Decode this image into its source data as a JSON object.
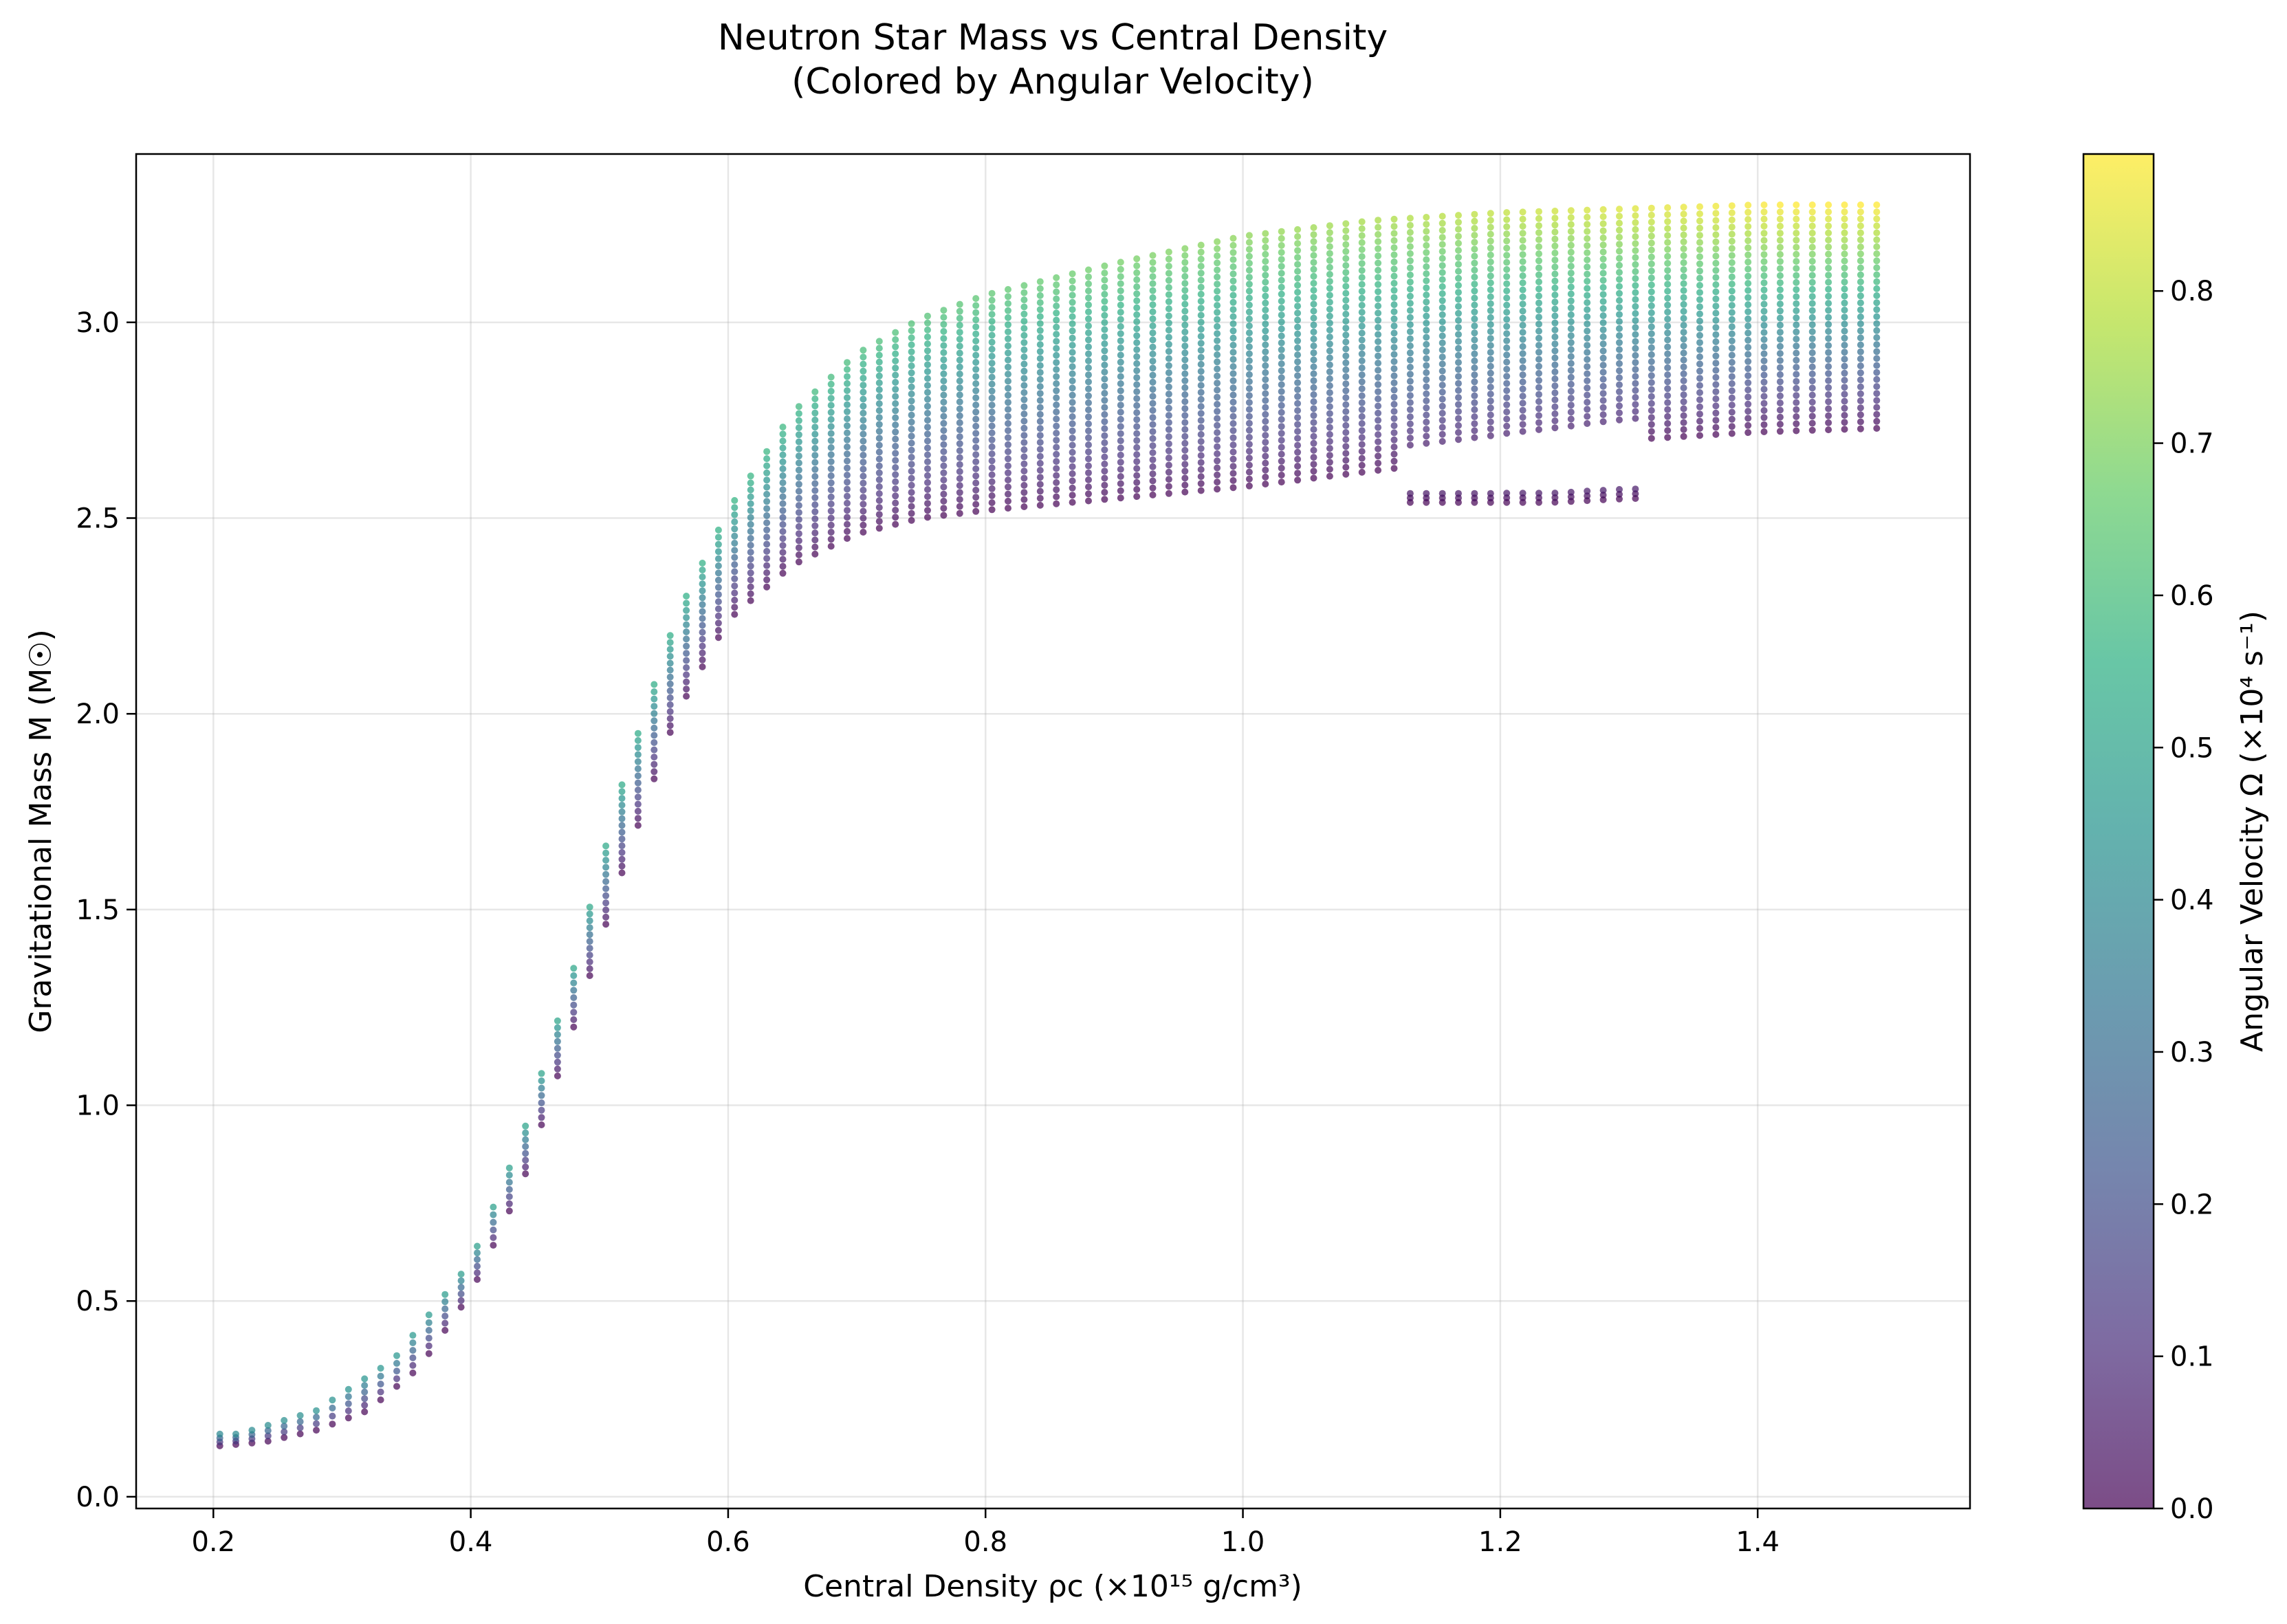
{
  "chart_data": {
    "type": "scatter",
    "title": "Neutron Star Mass vs Central Density",
    "subtitle": "(Colored by Angular Velocity)",
    "xlabel": "Central Density ρc (×10¹⁵ g/cm³)",
    "ylabel": "Gravitational Mass M (M☉)",
    "colorbar_label": "Angular Velocity Ω (×10⁴ s⁻¹)",
    "colormap": "viridis",
    "point_alpha": 0.7,
    "xlim": [
      0.14,
      1.565
    ],
    "ylim": [
      -0.03,
      3.43
    ],
    "clim": [
      0.0,
      0.89
    ],
    "x_ticks": [
      0.2,
      0.4,
      0.6,
      0.8,
      1.0,
      1.2,
      1.4
    ],
    "x_tick_labels": [
      "0.2",
      "0.4",
      "0.6",
      "0.8",
      "1.0",
      "1.2",
      "1.4"
    ],
    "y_ticks": [
      0.0,
      0.5,
      1.0,
      1.5,
      2.0,
      2.5,
      3.0
    ],
    "y_tick_labels": [
      "0.0",
      "0.5",
      "1.0",
      "1.5",
      "2.0",
      "2.5",
      "3.0"
    ],
    "c_ticks": [
      0.0,
      0.1,
      0.2,
      0.3,
      0.4,
      0.5,
      0.6,
      0.7,
      0.8
    ],
    "c_tick_labels": [
      "0.0",
      "0.1",
      "0.2",
      "0.3",
      "0.4",
      "0.5",
      "0.6",
      "0.7",
      "0.8"
    ],
    "grid": true,
    "series": [
      {
        "description_key": "lower_envelope_nonrotating",
        "x": [
          0.205,
          0.24,
          0.28,
          0.32,
          0.36,
          0.4,
          0.44,
          0.48,
          0.52,
          0.56,
          0.6,
          0.65,
          0.7,
          0.75,
          0.8,
          0.9,
          1.0,
          1.1,
          1.2,
          1.3,
          1.4,
          1.5
        ],
        "y": [
          0.13,
          0.14,
          0.17,
          0.22,
          0.33,
          0.52,
          0.8,
          1.2,
          1.62,
          2.0,
          2.24,
          2.38,
          2.46,
          2.5,
          2.52,
          2.55,
          2.58,
          2.62,
          2.66,
          2.7,
          2.72,
          2.73
        ]
      },
      {
        "description_key": "upper_envelope_max_rotation",
        "x": [
          0.22,
          0.28,
          0.34,
          0.4,
          0.44,
          0.48,
          0.52,
          0.56,
          0.6,
          0.65,
          0.7,
          0.75,
          0.8,
          0.9,
          1.0,
          1.1,
          1.2,
          1.3,
          1.4,
          1.5
        ],
        "y": [
          0.16,
          0.22,
          0.35,
          0.6,
          0.92,
          1.35,
          1.85,
          2.25,
          2.52,
          2.77,
          2.92,
          3.01,
          3.07,
          3.15,
          3.22,
          3.26,
          3.28,
          3.29,
          3.3,
          3.3
        ]
      },
      {
        "description_key": "upper_clipped_branch_end",
        "x": [
          1.18,
          1.24,
          1.3
        ],
        "y": [
          2.54,
          2.54,
          2.55
        ]
      }
    ]
  }
}
